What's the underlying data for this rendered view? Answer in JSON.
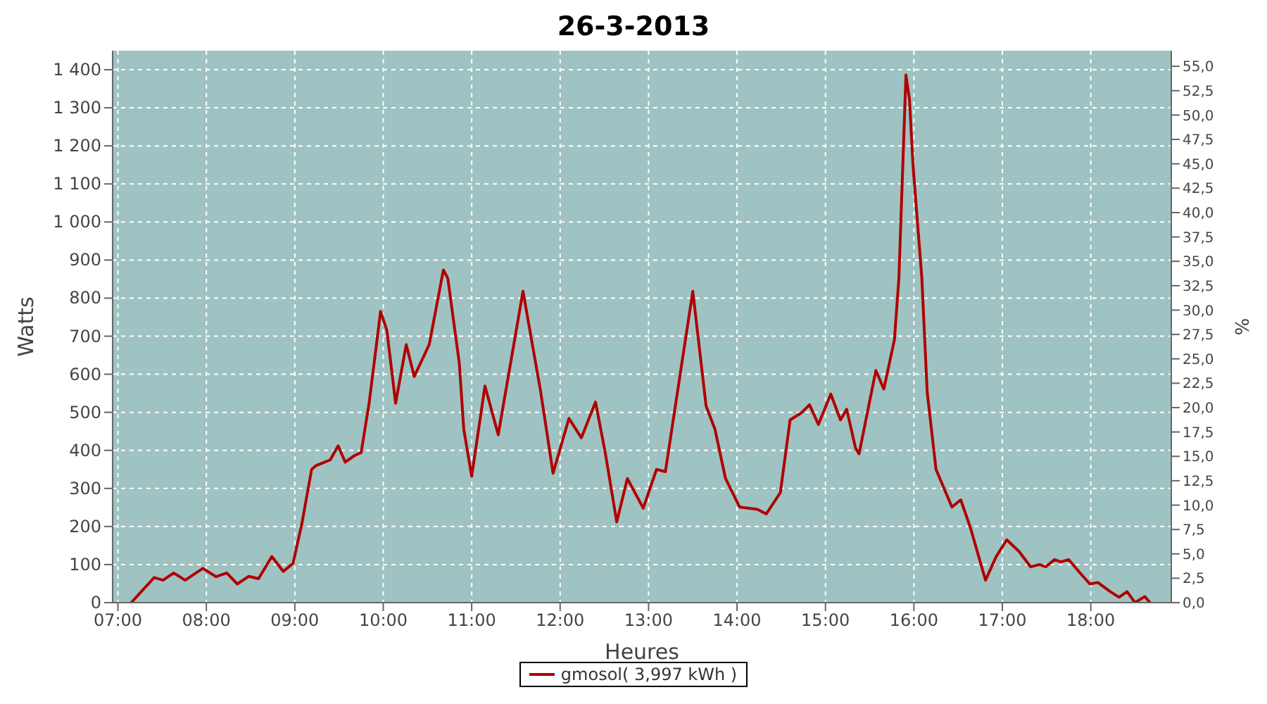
{
  "chart_data": {
    "type": "line",
    "title": "26-3-2013",
    "xlabel": "Heures",
    "ylabel": "Watts",
    "y2label": "%",
    "x": [
      7.15,
      7.41,
      7.51,
      7.63,
      7.76,
      7.96,
      8.11,
      8.23,
      8.35,
      8.48,
      8.59,
      8.74,
      8.87,
      8.98,
      9.08,
      9.19,
      9.24,
      9.4,
      9.49,
      9.57,
      9.68,
      9.75,
      9.84,
      9.97,
      10.04,
      10.14,
      10.26,
      10.35,
      10.52,
      10.68,
      10.73,
      10.86,
      10.91,
      11.0,
      11.15,
      11.3,
      11.58,
      11.78,
      11.92,
      12.1,
      12.24,
      12.4,
      12.51,
      12.64,
      12.76,
      12.94,
      13.09,
      13.19,
      13.36,
      13.5,
      13.65,
      13.75,
      13.87,
      14.03,
      14.23,
      14.33,
      14.49,
      14.6,
      14.73,
      14.82,
      14.92,
      15.06,
      15.17,
      15.24,
      15.34,
      15.38,
      15.57,
      15.66,
      15.78,
      15.83,
      15.91,
      15.95,
      15.99,
      16.09,
      16.15,
      16.25,
      16.43,
      16.53,
      16.64,
      16.81,
      16.93,
      17.05,
      17.19,
      17.32,
      17.42,
      17.49,
      17.59,
      17.66,
      17.75,
      17.89,
      17.99,
      18.08,
      18.22,
      18.32,
      18.41,
      18.5,
      18.61,
      18.67
    ],
    "series": [
      {
        "name": "gmosol( 3,997 kWh )",
        "color": "#b00000",
        "values": [
          0,
          66,
          59,
          78,
          59,
          90,
          68,
          78,
          49,
          69,
          63,
          121,
          82,
          103,
          208,
          350,
          360,
          375,
          412,
          369,
          387,
          394,
          524,
          765,
          716,
          524,
          678,
          594,
          678,
          874,
          852,
          629,
          456,
          332,
          569,
          441,
          818,
          554,
          340,
          484,
          433,
          527,
          394,
          212,
          326,
          248,
          350,
          344,
          604,
          818,
          517,
          456,
          326,
          251,
          245,
          233,
          289,
          480,
          499,
          520,
          468,
          548,
          480,
          508,
          406,
          391,
          610,
          561,
          691,
          852,
          1386,
          1322,
          1149,
          852,
          554,
          350,
          251,
          270,
          196,
          59,
          121,
          165,
          134,
          94,
          100,
          94,
          113,
          107,
          113,
          75,
          49,
          53,
          29,
          14,
          29,
          0,
          16,
          0
        ]
      }
    ],
    "xlim": [
      6.94,
      18.91
    ],
    "xticks": [
      {
        "value": 7,
        "label": "07:00"
      },
      {
        "value": 8,
        "label": "08:00"
      },
      {
        "value": 9,
        "label": "09:00"
      },
      {
        "value": 10,
        "label": "10:00"
      },
      {
        "value": 11,
        "label": "11:00"
      },
      {
        "value": 12,
        "label": "12:00"
      },
      {
        "value": 13,
        "label": "13:00"
      },
      {
        "value": 14,
        "label": "14:00"
      },
      {
        "value": 15,
        "label": "15:00"
      },
      {
        "value": 16,
        "label": "16:00"
      },
      {
        "value": 17,
        "label": "17:00"
      },
      {
        "value": 18,
        "label": "18:00"
      }
    ],
    "ylim": [
      0,
      1450
    ],
    "yticks": [
      0,
      100,
      200,
      300,
      400,
      500,
      600,
      700,
      800,
      900,
      {
        "value": 1000,
        "label": "1 000"
      },
      {
        "value": 1100,
        "label": "1 100"
      },
      {
        "value": 1200,
        "label": "1 200"
      },
      {
        "value": 1300,
        "label": "1 300"
      },
      {
        "value": 1400,
        "label": "1 400"
      }
    ],
    "y2lim": [
      0,
      56.6
    ],
    "y2ticks": [
      {
        "value": 0,
        "label": "0,0"
      },
      {
        "value": 2.5,
        "label": "2,5"
      },
      {
        "value": 5,
        "label": "5,0"
      },
      {
        "value": 7.5,
        "label": "7,5"
      },
      {
        "value": 10,
        "label": "10,0"
      },
      {
        "value": 12.5,
        "label": "12,5"
      },
      {
        "value": 15,
        "label": "15,0"
      },
      {
        "value": 17.5,
        "label": "17,5"
      },
      {
        "value": 20,
        "label": "20,0"
      },
      {
        "value": 22.5,
        "label": "22,5"
      },
      {
        "value": 25,
        "label": "25,0"
      },
      {
        "value": 27.5,
        "label": "27,5"
      },
      {
        "value": 30,
        "label": "30,0"
      },
      {
        "value": 32.5,
        "label": "32,5"
      },
      {
        "value": 35,
        "label": "35,0"
      },
      {
        "value": 37.5,
        "label": "37,5"
      },
      {
        "value": 40,
        "label": "40,0"
      },
      {
        "value": 42.5,
        "label": "42,5"
      },
      {
        "value": 45,
        "label": "45,0"
      },
      {
        "value": 47.5,
        "label": "47,5"
      },
      {
        "value": 50,
        "label": "50,0"
      },
      {
        "value": 52.5,
        "label": "52,5"
      },
      {
        "value": 55,
        "label": "55,0"
      }
    ],
    "grid": true,
    "legend": "bottom",
    "marker": "none",
    "line_style": "solid"
  }
}
